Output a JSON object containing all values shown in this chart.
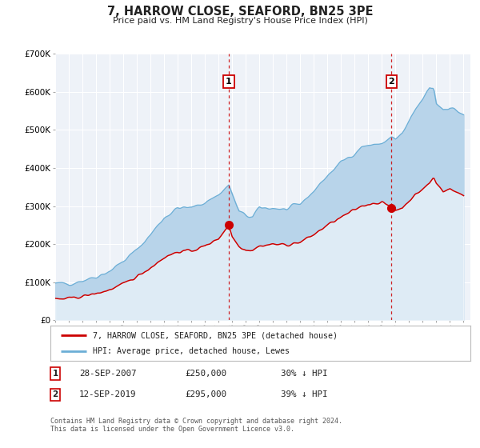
{
  "title": "7, HARROW CLOSE, SEAFORD, BN25 3PE",
  "subtitle": "Price paid vs. HM Land Registry's House Price Index (HPI)",
  "legend_line1": "7, HARROW CLOSE, SEAFORD, BN25 3PE (detached house)",
  "legend_line2": "HPI: Average price, detached house, Lewes",
  "annotation1_date": "28-SEP-2007",
  "annotation1_price": "£250,000",
  "annotation1_hpi": "30% ↓ HPI",
  "annotation2_date": "12-SEP-2019",
  "annotation2_price": "£295,000",
  "annotation2_hpi": "39% ↓ HPI",
  "footer": "Contains HM Land Registry data © Crown copyright and database right 2024.\nThis data is licensed under the Open Government Licence v3.0.",
  "hpi_color": "#b8d4ea",
  "hpi_line_color": "#6baed6",
  "price_color": "#cc0000",
  "vline_color": "#cc0000",
  "plot_bg": "#eef2f8",
  "grid_color": "#ffffff",
  "ylim": [
    0,
    700000
  ],
  "xlim_start": 1995.0,
  "xlim_end": 2025.5,
  "sale1_x": 2007.75,
  "sale1_y": 250000,
  "sale2_x": 2019.7,
  "sale2_y": 295000,
  "hpi_anchors_t": [
    1995.0,
    1996.0,
    1997.0,
    1998.0,
    1999.0,
    2000.0,
    2001.0,
    2002.0,
    2003.0,
    2004.0,
    2005.0,
    2006.0,
    2007.0,
    2007.75,
    2008.0,
    2008.5,
    2009.0,
    2009.5,
    2010.0,
    2011.0,
    2012.0,
    2013.0,
    2014.0,
    2015.0,
    2016.0,
    2017.0,
    2017.5,
    2018.0,
    2018.5,
    2019.0,
    2019.7,
    2020.0,
    2020.5,
    2021.0,
    2021.5,
    2022.0,
    2022.5,
    2022.8,
    2023.0,
    2023.5,
    2024.0,
    2024.5,
    2025.0
  ],
  "hpi_anchors_v": [
    95000,
    97000,
    105000,
    115000,
    130000,
    155000,
    185000,
    225000,
    270000,
    295000,
    295000,
    310000,
    330000,
    355000,
    330000,
    285000,
    275000,
    270000,
    295000,
    295000,
    290000,
    305000,
    340000,
    380000,
    415000,
    440000,
    455000,
    460000,
    460000,
    465000,
    480000,
    475000,
    490000,
    520000,
    555000,
    580000,
    610000,
    610000,
    570000,
    555000,
    560000,
    550000,
    540000
  ],
  "price_anchors_t": [
    1995.0,
    1996.0,
    1997.0,
    1998.0,
    1999.0,
    2000.0,
    2001.0,
    2002.0,
    2003.0,
    2004.0,
    2005.0,
    2005.5,
    2006.0,
    2006.5,
    2007.0,
    2007.75,
    2008.0,
    2008.5,
    2009.0,
    2009.5,
    2010.0,
    2011.0,
    2012.0,
    2013.0,
    2014.0,
    2015.0,
    2016.0,
    2017.0,
    2017.5,
    2018.0,
    2018.5,
    2019.0,
    2019.7,
    2020.0,
    2020.5,
    2021.0,
    2021.5,
    2022.0,
    2022.5,
    2022.8,
    2023.0,
    2023.5,
    2024.0,
    2024.5,
    2025.0
  ],
  "price_anchors_v": [
    55000,
    57000,
    63000,
    70000,
    80000,
    95000,
    115000,
    138000,
    165000,
    180000,
    183000,
    188000,
    195000,
    205000,
    215000,
    250000,
    220000,
    195000,
    185000,
    185000,
    195000,
    200000,
    198000,
    205000,
    225000,
    250000,
    270000,
    290000,
    300000,
    305000,
    308000,
    310000,
    295000,
    290000,
    295000,
    315000,
    330000,
    345000,
    360000,
    375000,
    360000,
    340000,
    345000,
    335000,
    330000
  ],
  "noise_seed": 42,
  "hpi_noise_std": 7000,
  "price_noise_std": 3500
}
